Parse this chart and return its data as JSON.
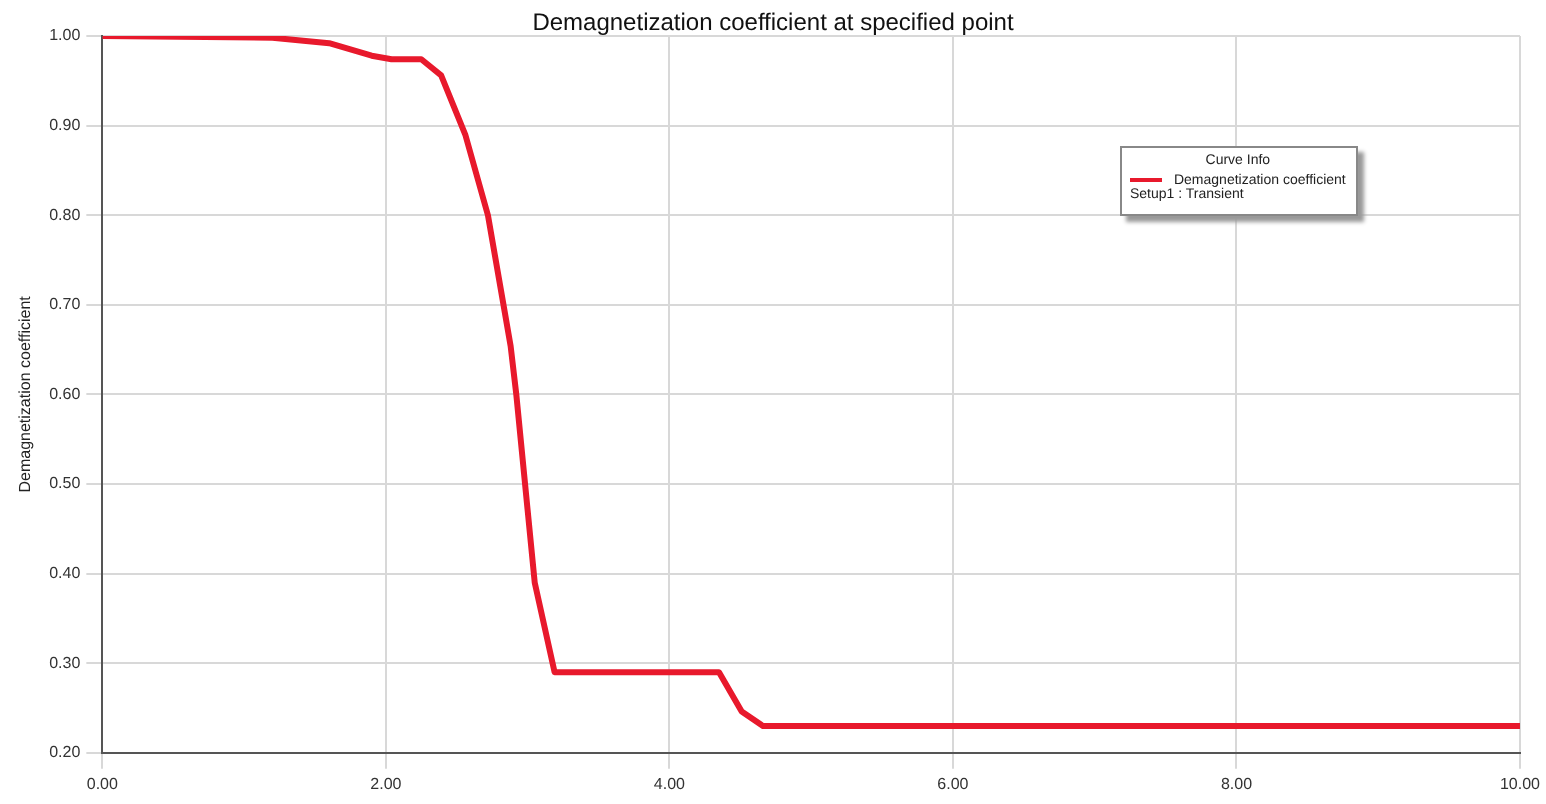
{
  "chart_data": {
    "type": "line",
    "title": "Demagnetization coefficient at specified point",
    "ylabel": "Demagnetization coefficient",
    "legend_title": "Curve Info",
    "annotations": [
      "Setup1 : Transient"
    ],
    "series": [
      {
        "name": "Demagnetization coefficient",
        "color": "#e8192c",
        "x": [
          0,
          1.2,
          1.6,
          1.9,
          2.04,
          2.25,
          2.39,
          2.56,
          2.72,
          2.88,
          2.92,
          3.05,
          3.19,
          4.35,
          4.51,
          4.66,
          10
        ],
        "values": [
          1.0,
          0.998,
          0.992,
          0.978,
          0.974,
          0.974,
          0.956,
          0.89,
          0.8,
          0.654,
          0.6,
          0.39,
          0.29,
          0.29,
          0.246,
          0.23,
          0.23
        ]
      }
    ],
    "xlim": [
      0,
      10
    ],
    "xticks": [
      {
        "value": 0,
        "label": "0.00"
      },
      {
        "value": 2,
        "label": "2.00"
      },
      {
        "value": 4,
        "label": "4.00"
      },
      {
        "value": 6,
        "label": "6.00"
      },
      {
        "value": 8,
        "label": "8.00"
      },
      {
        "value": 10,
        "label": "10.00"
      }
    ],
    "ylim": [
      0.2,
      1.0
    ],
    "yticks": [
      {
        "value": 0.2,
        "label": "0.20"
      },
      {
        "value": 0.3,
        "label": "0.30"
      },
      {
        "value": 0.4,
        "label": "0.40"
      },
      {
        "value": 0.5,
        "label": "0.50"
      },
      {
        "value": 0.6,
        "label": "0.60"
      },
      {
        "value": 0.7,
        "label": "0.70"
      },
      {
        "value": 0.8,
        "label": "0.80"
      },
      {
        "value": 0.9,
        "label": "0.90"
      },
      {
        "value": 1.0,
        "label": "1.00"
      }
    ],
    "grid": true,
    "legend": "top right",
    "marker": "none",
    "line_style": "solid"
  }
}
